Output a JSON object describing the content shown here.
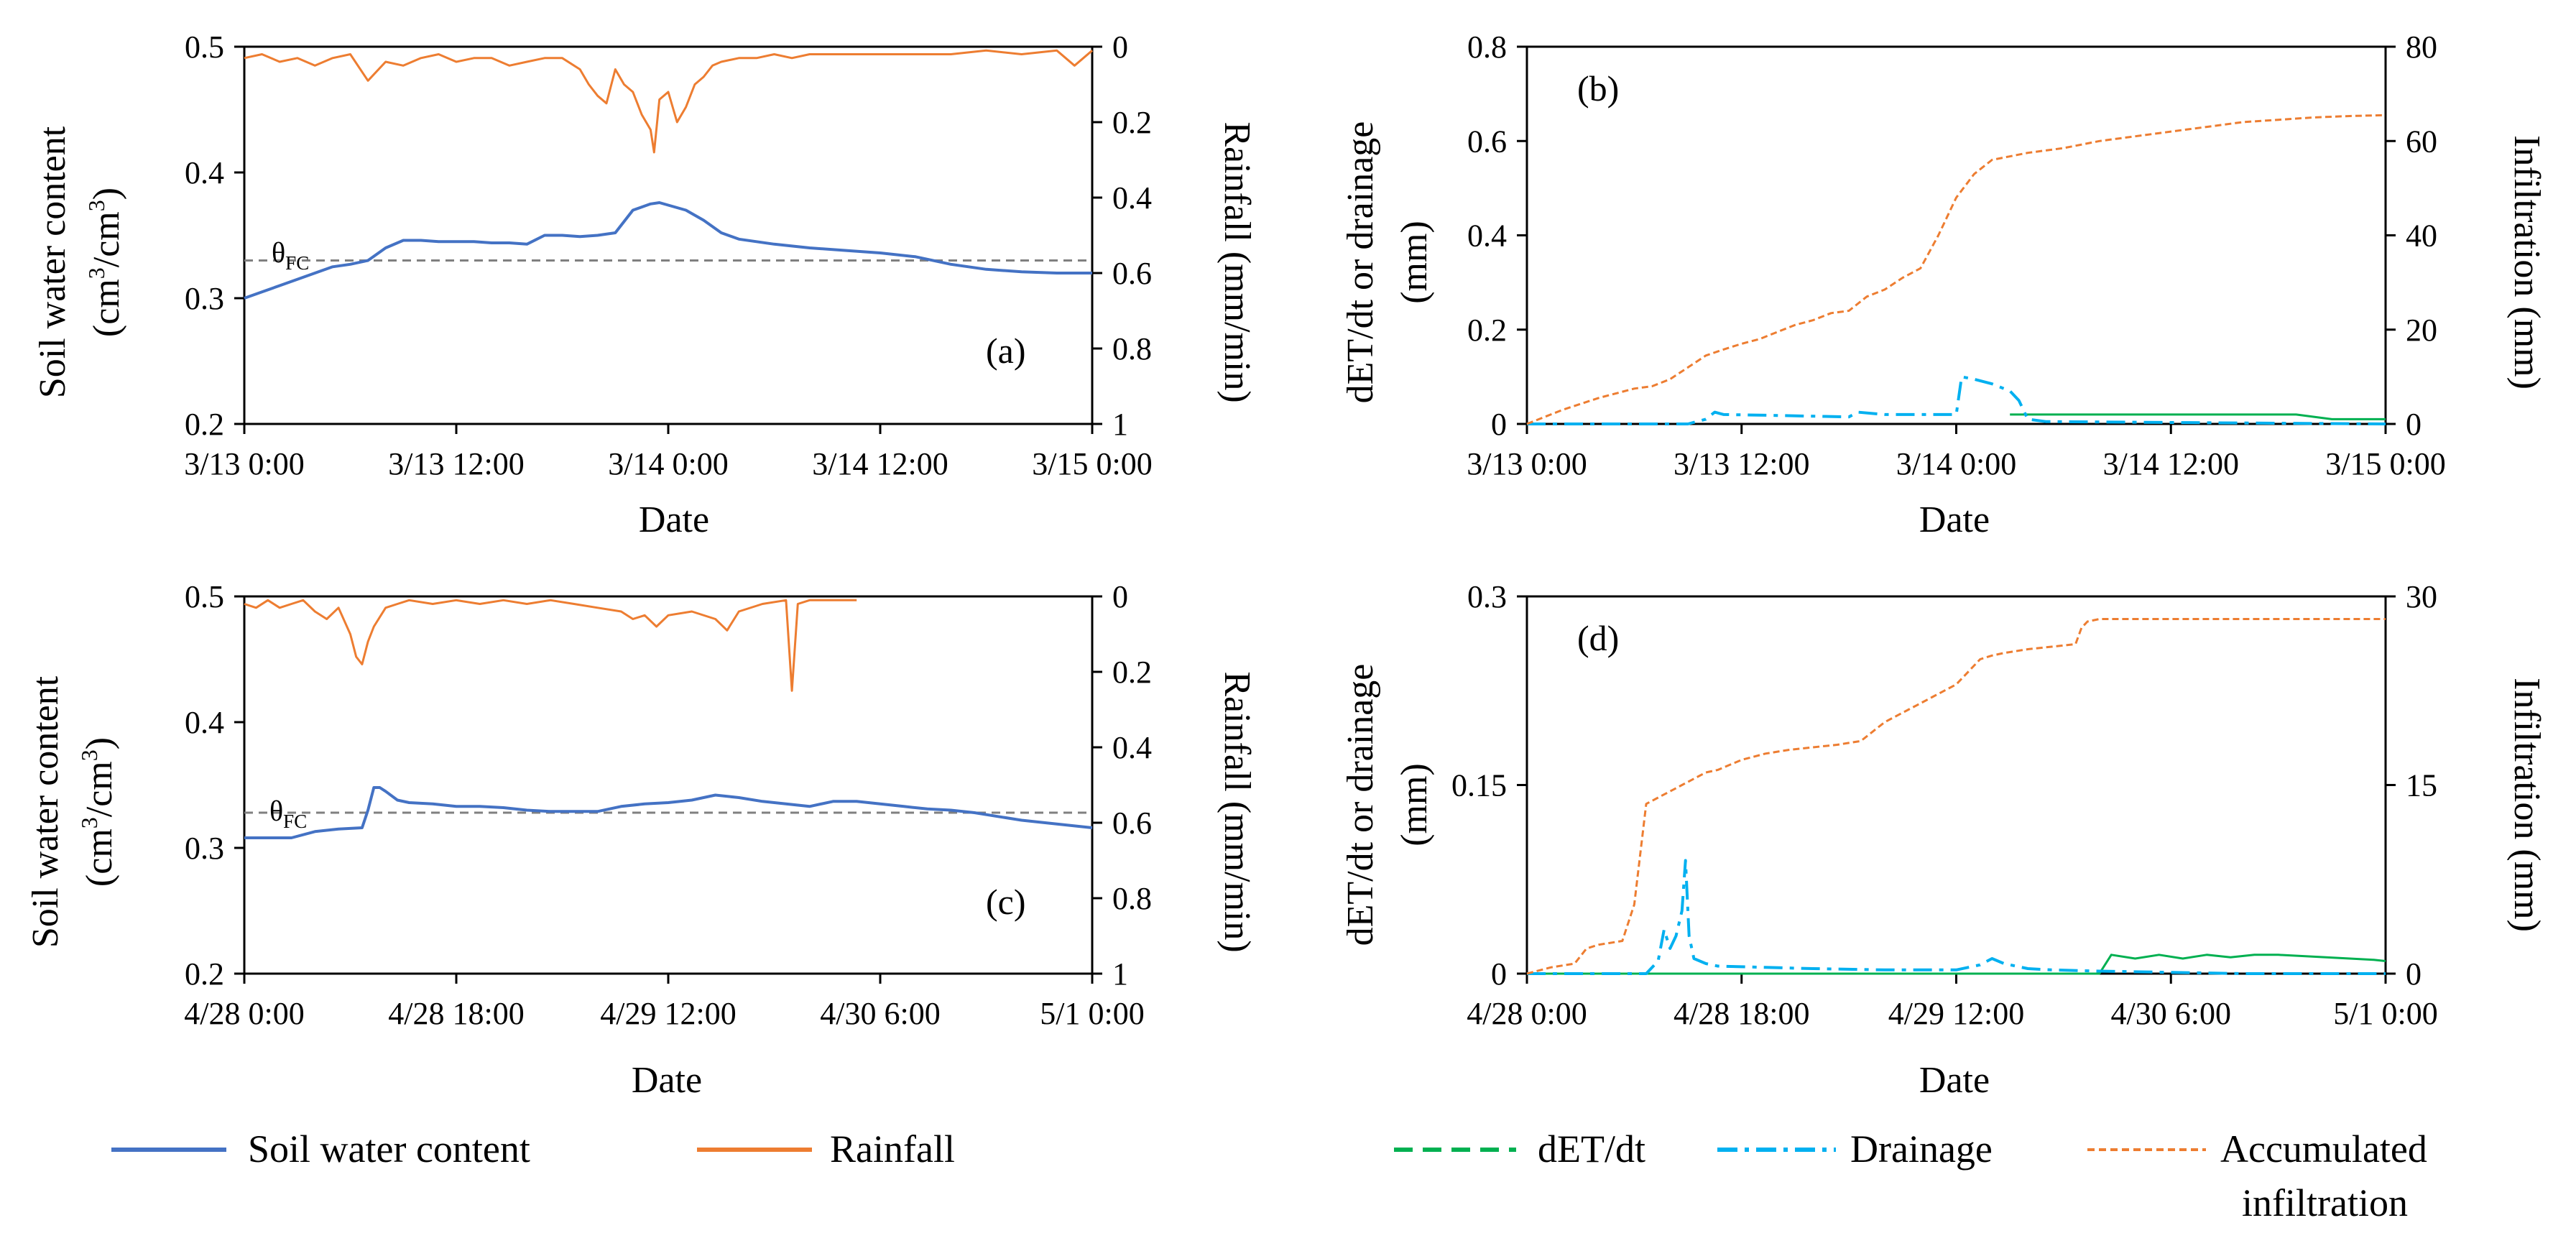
{
  "colors": {
    "soil": "#4472C4",
    "rain": "#ED7D31",
    "det": "#00B050",
    "drainage": "#00B0F0",
    "infiltration": "#ED7D31",
    "fc": "#808080",
    "axis": "#000000"
  },
  "chart_data": [
    {
      "id": "a",
      "type": "line",
      "panel_label": "(a)",
      "xlabel": "Date",
      "x_ticks": [
        "3/13 0:00",
        "3/13 12:00",
        "3/14 0:00",
        "3/14 12:00",
        "3/15 0:00"
      ],
      "x_range_hours": [
        0,
        48
      ],
      "ylabel_left_line1": "Soil water content",
      "ylabel_left_line2_prefix": "(cm",
      "ylabel_left_sup1": "3",
      "ylabel_left_mid": "/cm",
      "ylabel_left_sup2": "3",
      "ylabel_left_suffix": ")",
      "ylim_left": [
        0.2,
        0.5
      ],
      "y_ticks_left": [
        "0.5",
        "0.4",
        "0.3",
        "0.2"
      ],
      "y_tick_values_left": [
        0.5,
        0.4,
        0.3,
        0.2
      ],
      "ylabel_right": "Rainfall (mm/min)",
      "ylim_right_inverted": [
        0,
        1
      ],
      "y_ticks_right": [
        "0",
        "0.2",
        "0.4",
        "0.6",
        "0.8",
        "1"
      ],
      "y_tick_values_right": [
        0,
        0.2,
        0.4,
        0.6,
        0.8,
        1
      ],
      "fc_label": "θ",
      "fc_sub": "FC",
      "fc_value": 0.33,
      "series": [
        {
          "name": "Soil water content",
          "x": [
            0,
            1,
            2,
            3,
            4,
            5,
            6,
            7,
            8,
            9,
            10,
            11,
            12,
            13,
            14,
            15,
            16,
            17,
            18,
            19,
            20,
            21,
            22,
            23,
            23.5,
            24,
            25,
            26,
            27,
            28,
            30,
            32,
            34,
            36,
            38,
            40,
            42,
            44,
            46,
            48
          ],
          "y": [
            0.3,
            0.305,
            0.31,
            0.315,
            0.32,
            0.325,
            0.327,
            0.33,
            0.34,
            0.346,
            0.346,
            0.345,
            0.345,
            0.345,
            0.344,
            0.344,
            0.343,
            0.35,
            0.35,
            0.349,
            0.35,
            0.352,
            0.37,
            0.375,
            0.376,
            0.374,
            0.37,
            0.362,
            0.352,
            0.347,
            0.343,
            0.34,
            0.338,
            0.336,
            0.333,
            0.327,
            0.323,
            0.321,
            0.32,
            0.32
          ]
        },
        {
          "name": "Rainfall",
          "x": [
            0,
            1,
            2,
            3,
            4,
            5,
            6,
            7,
            8,
            9,
            10,
            11,
            12,
            13,
            14,
            15,
            16,
            17,
            18,
            19,
            19.5,
            20,
            20.5,
            21,
            21.5,
            22,
            22.5,
            23,
            23.2,
            23.5,
            24,
            24.5,
            25,
            25.5,
            26,
            26.5,
            27,
            28,
            29,
            30,
            31,
            32,
            33,
            34,
            35,
            36,
            38,
            40,
            42,
            44,
            46,
            47,
            48
          ],
          "y": [
            0.03,
            0.02,
            0.04,
            0.03,
            0.05,
            0.03,
            0.02,
            0.09,
            0.04,
            0.05,
            0.03,
            0.02,
            0.04,
            0.03,
            0.03,
            0.05,
            0.04,
            0.03,
            0.03,
            0.06,
            0.1,
            0.13,
            0.15,
            0.06,
            0.1,
            0.12,
            0.18,
            0.22,
            0.28,
            0.14,
            0.12,
            0.2,
            0.16,
            0.1,
            0.08,
            0.05,
            0.04,
            0.03,
            0.03,
            0.02,
            0.03,
            0.02,
            0.02,
            0.02,
            0.02,
            0.02,
            0.02,
            0.02,
            0.01,
            0.02,
            0.01,
            0.05,
            0.01
          ]
        }
      ]
    },
    {
      "id": "b",
      "type": "line",
      "panel_label": "(b)",
      "xlabel": "Date",
      "x_ticks": [
        "3/13 0:00",
        "3/13 12:00",
        "3/14 0:00",
        "3/14 12:00",
        "3/15 0:00"
      ],
      "x_range_hours": [
        0,
        48
      ],
      "ylabel_left_line1": "dET/dt or drainage",
      "ylabel_left_line2": "(mm)",
      "ylim_left": [
        0,
        0.8
      ],
      "y_ticks_left": [
        "0.8",
        "0.6",
        "0.4",
        "0.2",
        "0"
      ],
      "y_tick_values_left": [
        0.8,
        0.6,
        0.4,
        0.2,
        0
      ],
      "ylabel_right": "Infiltration (mm)",
      "ylim_right": [
        0,
        80
      ],
      "y_ticks_right": [
        "80",
        "60",
        "40",
        "20",
        "0"
      ],
      "y_tick_values_right": [
        80,
        60,
        40,
        20,
        0
      ],
      "series": [
        {
          "name": "dET/dt",
          "x": [
            27,
            29,
            31,
            33,
            35,
            37,
            39,
            41,
            43,
            45,
            47,
            48
          ],
          "y": [
            0.02,
            0.02,
            0.02,
            0.02,
            0.02,
            0.02,
            0.02,
            0.02,
            0.02,
            0.01,
            0.01,
            0.01
          ]
        },
        {
          "name": "Drainage",
          "x": [
            0,
            9,
            10,
            10.5,
            11,
            14,
            18,
            18.5,
            20,
            24,
            24.3,
            25,
            26,
            27,
            27.5,
            28,
            29,
            36,
            48
          ],
          "y": [
            0,
            0,
            0.01,
            0.025,
            0.02,
            0.018,
            0.015,
            0.025,
            0.02,
            0.02,
            0.1,
            0.095,
            0.085,
            0.07,
            0.05,
            0.01,
            0.005,
            0.003,
            0
          ]
        },
        {
          "name": "Accumulated infiltration",
          "x": [
            0,
            2,
            4,
            6,
            7,
            8,
            9,
            10,
            11,
            12,
            13,
            14,
            15,
            16,
            17,
            18,
            19,
            20,
            21,
            22,
            23,
            24,
            25,
            26,
            28,
            30,
            32,
            34,
            36,
            38,
            40,
            42,
            44,
            46,
            48
          ],
          "y": [
            0,
            3,
            5.5,
            7.5,
            8,
            9.5,
            12,
            14.5,
            15.8,
            17,
            18,
            19.5,
            21,
            22,
            23.5,
            24,
            27,
            28.5,
            31,
            33,
            40,
            48,
            53,
            56,
            57.5,
            58.5,
            60,
            61,
            62,
            63,
            64,
            64.5,
            65,
            65.3,
            65.5
          ]
        }
      ]
    },
    {
      "id": "c",
      "type": "line",
      "panel_label": "(c)",
      "xlabel": "Date",
      "x_ticks": [
        "4/28 0:00",
        "4/28 18:00",
        "4/29 12:00",
        "4/30 6:00",
        "5/1 0:00"
      ],
      "x_range_hours": [
        0,
        72
      ],
      "ylabel_left_line1": "Soil water content",
      "ylabel_left_line2_prefix": "(cm",
      "ylabel_left_sup1": "3",
      "ylabel_left_mid": "/cm",
      "ylabel_left_sup2": "3",
      "ylabel_left_suffix": ")",
      "ylim_left": [
        0.2,
        0.5
      ],
      "y_ticks_left": [
        "0.5",
        "0.4",
        "0.3",
        "0.2"
      ],
      "y_tick_values_left": [
        0.5,
        0.4,
        0.3,
        0.2
      ],
      "ylabel_right": "Rainfall (mm/min)",
      "ylim_right_inverted": [
        0,
        1
      ],
      "y_ticks_right": [
        "0",
        "0.2",
        "0.4",
        "0.6",
        "0.8",
        "1"
      ],
      "y_tick_values_right": [
        0,
        0.2,
        0.4,
        0.6,
        0.8,
        1
      ],
      "fc_label": "θ",
      "fc_sub": "FC",
      "fc_value": 0.328,
      "series": [
        {
          "name": "Soil water content",
          "x": [
            0,
            2,
            4,
            6,
            8,
            10,
            10.5,
            11,
            11.5,
            12,
            13,
            14,
            16,
            18,
            20,
            22,
            24,
            26,
            28,
            30,
            32,
            34,
            36,
            38,
            40,
            42,
            44,
            46,
            48,
            50,
            52,
            54,
            56,
            58,
            60,
            62,
            64,
            66,
            68,
            70,
            72
          ],
          "y": [
            0.308,
            0.308,
            0.308,
            0.313,
            0.315,
            0.316,
            0.33,
            0.348,
            0.348,
            0.345,
            0.338,
            0.336,
            0.335,
            0.333,
            0.333,
            0.332,
            0.33,
            0.329,
            0.329,
            0.329,
            0.333,
            0.335,
            0.336,
            0.338,
            0.342,
            0.34,
            0.337,
            0.335,
            0.333,
            0.337,
            0.337,
            0.335,
            0.333,
            0.331,
            0.33,
            0.328,
            0.325,
            0.322,
            0.32,
            0.318,
            0.316
          ]
        },
        {
          "name": "Rainfall",
          "x": [
            0,
            1,
            2,
            3,
            4,
            5,
            6,
            7,
            8,
            9,
            9.5,
            10,
            10.5,
            11,
            12,
            13,
            14,
            16,
            18,
            20,
            22,
            24,
            26,
            28,
            30,
            32,
            33,
            34,
            35,
            36,
            38,
            40,
            41,
            42,
            44,
            46,
            46.5,
            47,
            48,
            50,
            52
          ],
          "y": [
            0.02,
            0.03,
            0.01,
            0.03,
            0.02,
            0.01,
            0.04,
            0.06,
            0.03,
            0.1,
            0.16,
            0.18,
            0.12,
            0.08,
            0.03,
            0.02,
            0.01,
            0.02,
            0.01,
            0.02,
            0.01,
            0.02,
            0.01,
            0.02,
            0.03,
            0.04,
            0.06,
            0.05,
            0.08,
            0.05,
            0.04,
            0.06,
            0.09,
            0.04,
            0.02,
            0.01,
            0.25,
            0.02,
            0.01,
            0.01,
            0.01
          ]
        }
      ]
    },
    {
      "id": "d",
      "type": "line",
      "panel_label": "(d)",
      "xlabel": "Date",
      "x_ticks": [
        "4/28 0:00",
        "4/28 18:00",
        "4/29 12:00",
        "4/30 6:00",
        "5/1 0:00"
      ],
      "x_range_hours": [
        0,
        72
      ],
      "ylabel_left_line1": "dET/dt or drainage",
      "ylabel_left_line2": "(mm)",
      "ylim_left": [
        0,
        0.3
      ],
      "y_ticks_left": [
        "0.3",
        "0.15",
        "0"
      ],
      "y_tick_values_left": [
        0.3,
        0.15,
        0
      ],
      "ylabel_right": "Infiltration (mm)",
      "ylim_right": [
        0,
        30
      ],
      "y_ticks_right": [
        "30",
        "15",
        "0"
      ],
      "y_tick_values_right": [
        30,
        15,
        0
      ],
      "series": [
        {
          "name": "dET/dt",
          "x": [
            0,
            48,
            49,
            51,
            53,
            55,
            57,
            59,
            61,
            63,
            65,
            67,
            69,
            71,
            72
          ],
          "y": [
            0,
            0,
            0.015,
            0.012,
            0.015,
            0.012,
            0.015,
            0.013,
            0.015,
            0.015,
            0.014,
            0.013,
            0.012,
            0.011,
            0.01
          ]
        },
        {
          "name": "Drainage",
          "x": [
            0,
            10,
            11,
            11.5,
            12,
            12.5,
            13,
            13.3,
            13.6,
            14,
            15,
            16,
            20,
            24,
            30,
            36,
            38,
            39,
            40,
            42,
            44,
            48,
            60,
            72
          ],
          "y": [
            0,
            0,
            0.01,
            0.035,
            0.02,
            0.03,
            0.05,
            0.09,
            0.03,
            0.012,
            0.008,
            0.006,
            0.005,
            0.004,
            0.003,
            0.003,
            0.007,
            0.012,
            0.008,
            0.004,
            0.003,
            0.002,
            0,
            0
          ]
        },
        {
          "name": "Accumulated infiltration",
          "x": [
            0,
            2,
            4,
            5,
            6,
            8,
            9,
            10,
            11,
            12,
            13,
            14,
            15,
            16,
            18,
            20,
            22,
            24,
            26,
            28,
            30,
            32,
            33,
            34,
            36,
            38,
            39,
            40,
            42,
            44,
            46,
            46.5,
            47,
            48,
            50,
            52,
            54,
            56,
            58,
            60,
            62,
            64,
            66,
            68,
            70,
            72
          ],
          "y": [
            0,
            0.5,
            0.8,
            2,
            2.3,
            2.6,
            5.5,
            13.5,
            14,
            14.5,
            15,
            15.5,
            16,
            16.2,
            17,
            17.5,
            17.8,
            18,
            18.2,
            18.5,
            20,
            21,
            21.5,
            22,
            23,
            25,
            25.3,
            25.5,
            25.8,
            26,
            26.2,
            27.5,
            28,
            28.2,
            28.2,
            28.2,
            28.2,
            28.2,
            28.2,
            28.2,
            28.2,
            28.2,
            28.2,
            28.2,
            28.2,
            28.2
          ]
        }
      ]
    }
  ],
  "legend_left": [
    {
      "name": "Soil water content",
      "style": "solid",
      "color": "#4472C4"
    },
    {
      "name": "Rainfall",
      "style": "solid",
      "color": "#ED7D31"
    }
  ],
  "legend_right": [
    {
      "name": "dET/dt",
      "style": "dash",
      "color": "#00B050"
    },
    {
      "name": "Drainage",
      "style": "dashdot",
      "color": "#00B0F0"
    },
    {
      "name_line1": "Accumulated",
      "name_line2": "infiltration",
      "style": "short-dash",
      "color": "#ED7D31"
    }
  ]
}
